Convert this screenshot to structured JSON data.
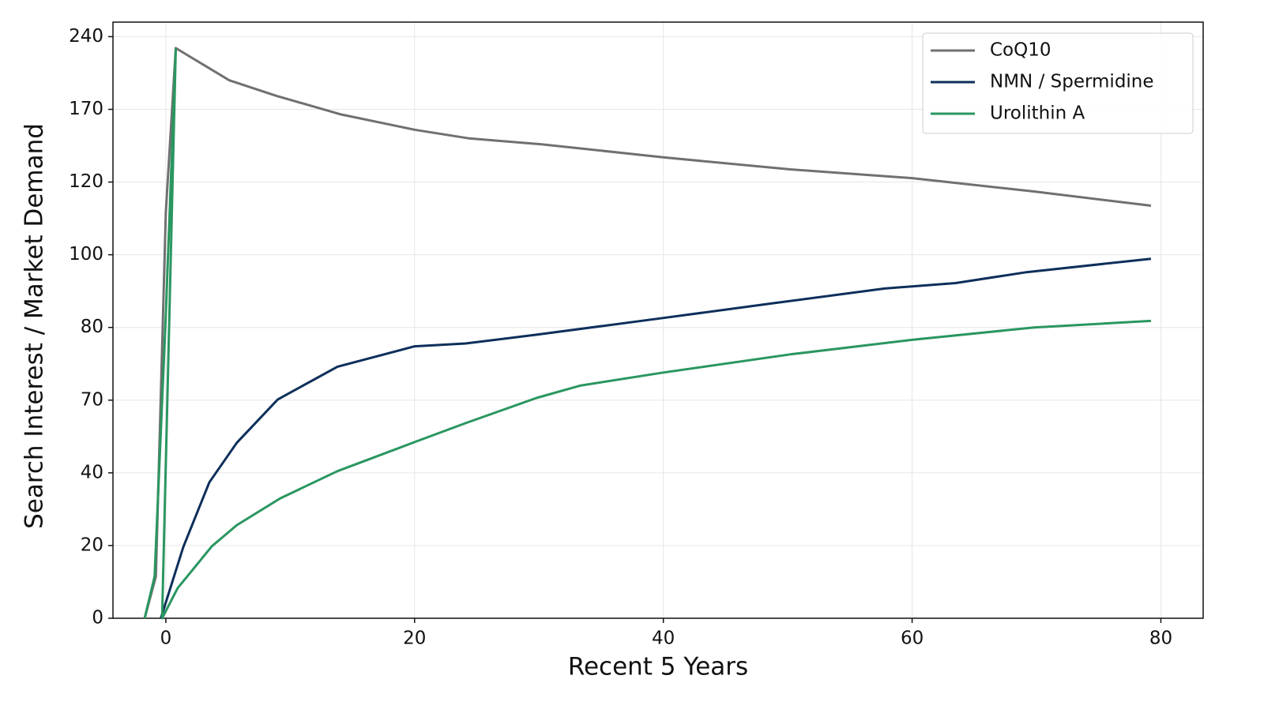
{
  "chart_data": {
    "type": "line",
    "xlabel": "Recent 5 Years",
    "ylabel": "Search Interest / Market Demand",
    "xlim": [
      -4.25,
      83.4
    ],
    "xticks": [
      0,
      20,
      40,
      60,
      80
    ],
    "ylim": [
      0,
      254
    ],
    "yticks": [
      0,
      20,
      40,
      70,
      80,
      100,
      120,
      170,
      240
    ],
    "yscale": "tick-interpolated",
    "grid": true,
    "legend": "upper right",
    "series": [
      {
        "name": "CoQ10",
        "color": "#707070",
        "x": [
          -1.7,
          -0.8,
          0,
          0.8,
          1.9,
          5.1,
          8.9,
          14,
          20,
          24.4,
          30.2,
          40,
          50.2,
          60,
          69.8,
          79.2
        ],
        "values": [
          0,
          11.5,
          111.7,
          229,
          221,
          198,
          183,
          166.7,
          156,
          150,
          146,
          137,
          128.7,
          122.7,
          117.4,
          113.5
        ]
      },
      {
        "name": "NMN / Spermidine",
        "color": "#0d2f5a",
        "x": [
          -0.4,
          1.4,
          3.5,
          5.7,
          9,
          13.8,
          20,
          24.1,
          29.8,
          40,
          48.9,
          57.8,
          63.5,
          69.2,
          79.2
        ],
        "values": [
          0,
          19.6,
          37.4,
          52.4,
          70.1,
          74.6,
          77.4,
          77.8,
          79,
          82.6,
          86.7,
          90.7,
          92.2,
          95.2,
          98.9
        ]
      },
      {
        "name": "Urolithin A",
        "color": "#2a9660",
        "x": [
          -1.7,
          -0.9,
          0,
          0.8,
          -0.3,
          0.95,
          3.7,
          5.7,
          9.2,
          13.8,
          20,
          24.1,
          29.8,
          33.3,
          40,
          50.2,
          60,
          69.8,
          79.2
        ],
        "values": [
          0,
          11.5,
          83.5,
          228,
          0,
          8.3,
          19.8,
          25.6,
          33,
          40.7,
          52.7,
          60.5,
          70.3,
          72,
          73.8,
          76.3,
          78.3,
          80,
          81.8
        ]
      }
    ]
  }
}
